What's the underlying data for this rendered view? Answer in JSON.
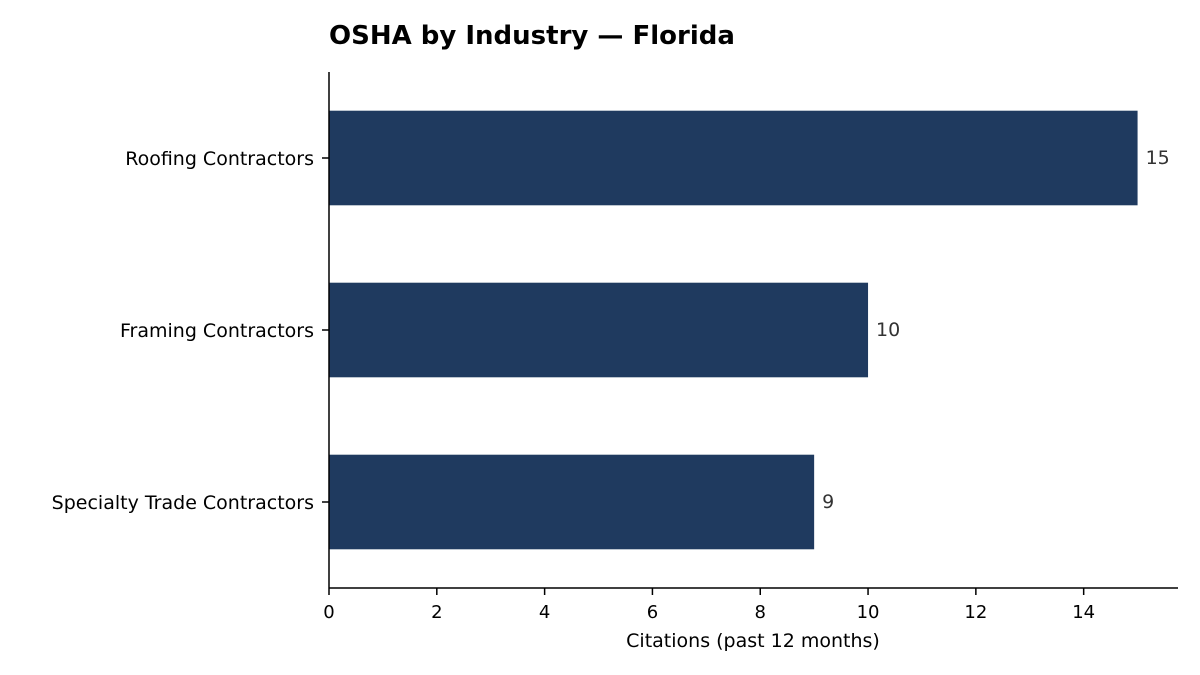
{
  "chart_data": {
    "type": "bar",
    "orientation": "horizontal",
    "title": "OSHA by Industry — Florida",
    "xlabel": "Citations (past 12 months)",
    "ylabel": "",
    "categories": [
      "Roofing Contractors",
      "Framing Contractors",
      "Specialty Trade Contractors"
    ],
    "values": [
      15,
      10,
      9
    ],
    "xlim": [
      0,
      15.75
    ],
    "xticks": [
      0,
      2,
      4,
      6,
      8,
      10,
      12,
      14
    ],
    "grid": false,
    "legend": "none",
    "bar_color": "#1f3a5f"
  }
}
